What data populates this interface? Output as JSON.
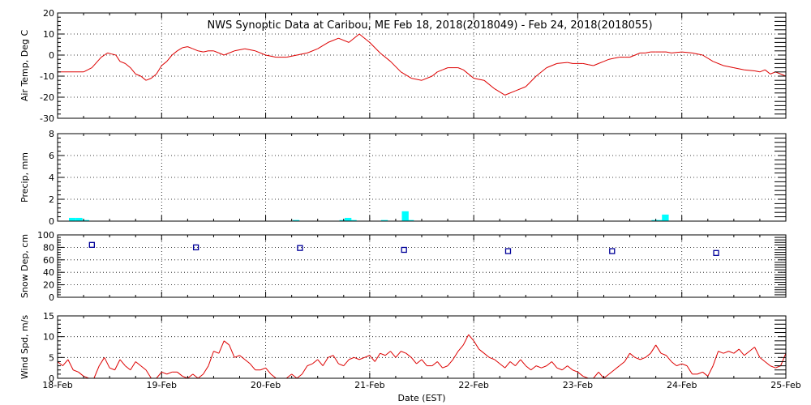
{
  "chart_data": {
    "type": "line",
    "title": "NWS Synoptic Data at Caribou, ME   Feb 18, 2018(2018049) - Feb 24, 2018(2018055)",
    "xlabel": "Date (EST)",
    "x_tick_labels": [
      "18-Feb",
      "19-Feb",
      "20-Feb",
      "21-Feb",
      "22-Feb",
      "23-Feb",
      "24-Feb",
      "25-Feb"
    ],
    "colors": {
      "temp": "#dd0000",
      "precip": "#00ffff",
      "snow": "#000099",
      "wind": "#dd0000"
    },
    "panels": [
      {
        "name": "temperature",
        "ylabel": "Air Temp, Deg C",
        "type": "line",
        "ylim": [
          -30,
          20
        ],
        "yticks": [
          -30,
          -20,
          -10,
          0,
          10,
          20
        ],
        "x_days": [
          0,
          0.25,
          0.33,
          0.42,
          0.45,
          0.48,
          0.52,
          0.56,
          0.6,
          0.65,
          0.7,
          0.75,
          0.8,
          0.85,
          0.9,
          0.95,
          1.0,
          1.05,
          1.1,
          1.15,
          1.2,
          1.25,
          1.3,
          1.35,
          1.4,
          1.45,
          1.5,
          1.55,
          1.6,
          1.65,
          1.7,
          1.8,
          1.9,
          2.0,
          2.1,
          2.2,
          2.3,
          2.4,
          2.5,
          2.6,
          2.7,
          2.8,
          2.9,
          3.0,
          3.1,
          3.2,
          3.3,
          3.4,
          3.5,
          3.6,
          3.65,
          3.7,
          3.75,
          3.8,
          3.85,
          3.9,
          4.0,
          4.1,
          4.2,
          4.3,
          4.4,
          4.5,
          4.6,
          4.7,
          4.8,
          4.9,
          4.95,
          5.0,
          5.05,
          5.1,
          5.15,
          5.2,
          5.25,
          5.3,
          5.35,
          5.4,
          5.45,
          5.5,
          5.55,
          5.6,
          5.65,
          5.7,
          5.75,
          5.8,
          5.85,
          5.9,
          6.0,
          6.1,
          6.2,
          6.3,
          6.4,
          6.5,
          6.6,
          6.7,
          6.75,
          6.8,
          6.85,
          6.9,
          6.95,
          7.0
        ],
        "values": [
          -8,
          -8,
          -6,
          -1,
          0,
          1,
          0.5,
          0,
          -3,
          -4,
          -6,
          -9,
          -10,
          -12,
          -11,
          -9,
          -5,
          -3,
          0,
          2,
          3.5,
          4,
          3,
          2,
          1.5,
          2,
          2,
          1,
          0,
          1,
          2,
          3,
          2,
          0,
          -1,
          -1,
          0,
          1,
          3,
          6,
          8,
          6,
          10,
          6,
          1,
          -3,
          -8,
          -11,
          -12,
          -10,
          -8,
          -7,
          -6,
          -6,
          -6,
          -7,
          -11,
          -12,
          -16,
          -19,
          -17,
          -15,
          -10,
          -6,
          -4,
          -3.5,
          -4,
          -4,
          -4,
          -4.5,
          -5,
          -4,
          -3,
          -2,
          -1.5,
          -1,
          -1,
          -1,
          0,
          1,
          1,
          1.5,
          1.5,
          1.5,
          1.5,
          1,
          1.5,
          1,
          0,
          -3,
          -5,
          -6,
          -7,
          -7.5,
          -8,
          -7,
          -9,
          -8,
          -9,
          -10
        ]
      },
      {
        "name": "precipitation",
        "ylabel": "Precip, mm",
        "type": "bar",
        "ylim": [
          0,
          8
        ],
        "yticks": [
          0,
          2,
          4,
          6,
          8
        ],
        "bar_width_days": 0.065,
        "x_days": [
          0.0,
          0.065,
          0.13,
          1.15,
          2.15,
          2.6,
          2.65,
          2.7,
          3.0,
          3.2,
          3.25,
          5.6,
          5.65,
          5.7
        ],
        "values": [
          0.3,
          0.3,
          0.1,
          0.0,
          0.1,
          0.1,
          0.3,
          0.1,
          0.1,
          0.9,
          0.1,
          0.1,
          0.1,
          0.6
        ]
      },
      {
        "name": "snow-depth",
        "ylabel": "Snow Dep, cm",
        "type": "scatter",
        "ylim": [
          0,
          100
        ],
        "yticks": [
          0,
          20,
          40,
          60,
          80,
          100
        ],
        "x_days": [
          0.33,
          1.33,
          2.33,
          3.33,
          4.33,
          5.33,
          6.33
        ],
        "values": [
          84,
          80,
          79,
          76,
          74,
          74,
          71
        ]
      },
      {
        "name": "wind-speed",
        "ylabel": "Wind Spd, m/s",
        "type": "line",
        "ylim": [
          0,
          15
        ],
        "yticks": [
          0,
          5,
          10,
          15
        ],
        "x_days": [
          0,
          0.05,
          0.1,
          0.15,
          0.2,
          0.25,
          0.3,
          0.35,
          0.4,
          0.45,
          0.5,
          0.55,
          0.6,
          0.65,
          0.7,
          0.75,
          0.8,
          0.85,
          0.9,
          0.95,
          1.0,
          1.05,
          1.1,
          1.15,
          1.2,
          1.25,
          1.3,
          1.35,
          1.4,
          1.45,
          1.5,
          1.55,
          1.6,
          1.65,
          1.7,
          1.75,
          1.8,
          1.85,
          1.9,
          1.95,
          2.0,
          2.05,
          2.1,
          2.15,
          2.2,
          2.25,
          2.3,
          2.35,
          2.4,
          2.45,
          2.5,
          2.55,
          2.6,
          2.65,
          2.7,
          2.75,
          2.8,
          2.85,
          2.9,
          2.95,
          3.0,
          3.05,
          3.1,
          3.15,
          3.2,
          3.25,
          3.3,
          3.35,
          3.4,
          3.45,
          3.5,
          3.55,
          3.6,
          3.65,
          3.7,
          3.75,
          3.8,
          3.85,
          3.9,
          3.95,
          4.0,
          4.05,
          4.1,
          4.15,
          4.2,
          4.25,
          4.3,
          4.35,
          4.4,
          4.45,
          4.5,
          4.55,
          4.6,
          4.65,
          4.7,
          4.75,
          4.8,
          4.85,
          4.9,
          4.95,
          5.0,
          5.05,
          5.1,
          5.15,
          5.2,
          5.25,
          5.3,
          5.35,
          5.4,
          5.45,
          5.5,
          5.55,
          5.6,
          5.65,
          5.7,
          5.75,
          5.8,
          5.85,
          5.9,
          5.95,
          6.0,
          6.05,
          6.1,
          6.15,
          6.2,
          6.25,
          6.3,
          6.35,
          6.4,
          6.45,
          6.5,
          6.55,
          6.6,
          6.65,
          6.7,
          6.75,
          6.8,
          6.85,
          6.9,
          6.95,
          7.0
        ],
        "values": [
          4,
          3,
          4.5,
          2,
          1.5,
          0.5,
          0,
          0,
          3,
          5,
          2.5,
          2,
          4.5,
          3,
          2,
          4,
          3,
          2,
          0,
          0,
          1.5,
          1,
          1.5,
          1.5,
          0.5,
          0,
          1,
          0,
          1,
          3,
          6.5,
          6,
          9,
          8,
          5,
          5.5,
          4.5,
          3.5,
          2,
          2,
          2.5,
          1,
          0,
          0,
          0,
          1,
          0,
          1,
          3,
          3.5,
          4.5,
          3,
          5,
          5.5,
          3.5,
          3,
          4.5,
          5,
          4.5,
          5,
          5.5,
          4,
          6,
          5.5,
          6.5,
          5,
          6.5,
          6,
          5,
          3.5,
          4.5,
          3,
          3,
          4,
          2.5,
          3,
          4.5,
          6.5,
          8,
          10.5,
          9,
          7,
          6,
          5,
          4.5,
          3.5,
          2.5,
          4,
          3,
          4.5,
          3,
          2,
          3,
          2.5,
          3,
          4,
          2.5,
          2,
          3,
          2,
          1.5,
          0.5,
          0,
          0,
          1.5,
          0,
          1,
          2,
          3,
          4,
          6,
          5,
          4.5,
          5,
          6,
          8,
          6,
          5.5,
          4,
          3,
          3.5,
          3,
          1,
          1,
          1.5,
          0.5,
          3,
          6.5,
          6,
          6.5,
          6,
          7,
          5.5,
          6.5,
          7.5,
          5,
          4,
          3,
          2.5,
          3,
          6
        ]
      }
    ]
  }
}
